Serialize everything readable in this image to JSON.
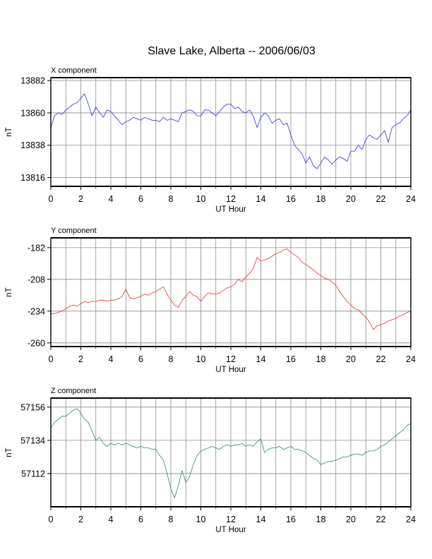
{
  "chart_data": {
    "title": "Slave Lake, Alberta -- 2006/06/03",
    "panels": [
      {
        "type": "line",
        "panel_title": "X component",
        "xlabel": "UT Hour",
        "ylabel": "nT",
        "xlim": [
          0,
          24
        ],
        "ylim": [
          13810,
          13884
        ],
        "xticks": [
          0,
          2,
          4,
          6,
          8,
          10,
          12,
          14,
          16,
          18,
          20,
          22,
          24
        ],
        "yticks": [
          13816,
          13838,
          13860,
          13882
        ],
        "grid": true,
        "color": "#3030e0",
        "x": [
          0.0,
          0.25,
          0.5,
          0.75,
          1.0,
          1.25,
          1.5,
          1.75,
          2.0,
          2.25,
          2.5,
          2.75,
          3.0,
          3.25,
          3.5,
          3.75,
          4.0,
          4.25,
          4.5,
          4.75,
          5.0,
          5.25,
          5.5,
          5.75,
          6.0,
          6.25,
          6.5,
          6.75,
          7.0,
          7.25,
          7.5,
          7.75,
          8.0,
          8.25,
          8.5,
          8.75,
          9.0,
          9.25,
          9.5,
          9.75,
          10.0,
          10.25,
          10.5,
          10.75,
          11.0,
          11.25,
          11.5,
          11.75,
          12.0,
          12.25,
          12.5,
          12.75,
          13.0,
          13.25,
          13.5,
          13.75,
          14.0,
          14.25,
          14.5,
          14.75,
          15.0,
          15.25,
          15.5,
          15.75,
          16.0,
          16.25,
          16.5,
          16.75,
          17.0,
          17.25,
          17.5,
          17.75,
          18.0,
          18.25,
          18.5,
          18.75,
          19.0,
          19.25,
          19.5,
          19.75,
          20.0,
          20.25,
          20.5,
          20.75,
          21.0,
          21.25,
          21.5,
          21.75,
          22.0,
          22.25,
          22.5,
          22.75,
          23.0,
          23.25,
          23.5,
          23.75,
          24.0
        ],
        "values": [
          13850,
          13858,
          13860,
          13859,
          13862,
          13864,
          13866,
          13867,
          13870,
          13873,
          13866,
          13858,
          13864,
          13860,
          13857,
          13862,
          13861,
          13858,
          13855,
          13852,
          13854,
          13855,
          13857,
          13856,
          13855,
          13857,
          13856,
          13855,
          13855,
          13854,
          13857,
          13855,
          13856,
          13855,
          13854,
          13860,
          13861,
          13862,
          13861,
          13858,
          13858,
          13862,
          13862,
          13860,
          13858,
          13861,
          13864,
          13866,
          13866,
          13863,
          13864,
          13861,
          13860,
          13862,
          13858,
          13850,
          13857,
          13860,
          13858,
          13853,
          13855,
          13856,
          13852,
          13853,
          13845,
          13838,
          13835,
          13832,
          13826,
          13830,
          13824,
          13822,
          13826,
          13830,
          13828,
          13825,
          13828,
          13830,
          13829,
          13827,
          13834,
          13834,
          13838,
          13835,
          13842,
          13845,
          13843,
          13842,
          13845,
          13848,
          13840,
          13850,
          13852,
          13853,
          13856,
          13858,
          13862
        ]
      },
      {
        "type": "line",
        "panel_title": "Y component",
        "xlabel": "UT Hour",
        "ylabel": "nT",
        "xlim": [
          0,
          24
        ],
        "ylim": [
          -263,
          -174
        ],
        "xticks": [
          0,
          2,
          4,
          6,
          8,
          10,
          12,
          14,
          16,
          18,
          20,
          22,
          24
        ],
        "yticks": [
          -182,
          -208,
          -234,
          -260
        ],
        "grid": true,
        "color": "#e03030",
        "x": [
          0.0,
          0.25,
          0.5,
          0.75,
          1.0,
          1.25,
          1.5,
          1.75,
          2.0,
          2.25,
          2.5,
          2.75,
          3.0,
          3.25,
          3.5,
          3.75,
          4.0,
          4.25,
          4.5,
          4.75,
          5.0,
          5.25,
          5.5,
          5.75,
          6.0,
          6.25,
          6.5,
          6.75,
          7.0,
          7.25,
          7.5,
          7.75,
          8.0,
          8.25,
          8.5,
          8.75,
          9.0,
          9.25,
          9.5,
          9.75,
          10.0,
          10.25,
          10.5,
          10.75,
          11.0,
          11.25,
          11.5,
          11.75,
          12.0,
          12.25,
          12.5,
          12.75,
          13.0,
          13.25,
          13.5,
          13.75,
          14.0,
          14.25,
          14.5,
          14.75,
          15.0,
          15.25,
          15.5,
          15.75,
          16.0,
          16.25,
          16.5,
          16.75,
          17.0,
          17.25,
          17.5,
          17.75,
          18.0,
          18.25,
          18.5,
          18.75,
          19.0,
          19.25,
          19.5,
          19.75,
          20.0,
          20.25,
          20.5,
          20.75,
          21.0,
          21.25,
          21.5,
          21.75,
          22.0,
          22.25,
          22.5,
          22.75,
          23.0,
          23.25,
          23.5,
          23.75,
          24.0
        ],
        "values": [
          -236,
          -236,
          -235,
          -234,
          -232,
          -230,
          -229,
          -230,
          -228,
          -226,
          -227,
          -226,
          -226,
          -225,
          -225,
          -226,
          -225,
          -225,
          -224,
          -222,
          -216,
          -223,
          -224,
          -223,
          -222,
          -220,
          -221,
          -219,
          -218,
          -216,
          -214,
          -220,
          -225,
          -229,
          -231,
          -225,
          -222,
          -218,
          -221,
          -222,
          -226,
          -222,
          -219,
          -220,
          -220,
          -219,
          -217,
          -215,
          -214,
          -212,
          -208,
          -210,
          -206,
          -203,
          -199,
          -190,
          -193,
          -192,
          -191,
          -189,
          -187,
          -186,
          -184,
          -183,
          -186,
          -188,
          -190,
          -194,
          -196,
          -198,
          -200,
          -203,
          -205,
          -207,
          -208,
          -210,
          -213,
          -218,
          -222,
          -226,
          -229,
          -232,
          -233,
          -236,
          -239,
          -243,
          -249,
          -246,
          -245,
          -244,
          -242,
          -241,
          -240,
          -238,
          -237,
          -235,
          -234
        ]
      },
      {
        "type": "line",
        "panel_title": "Z component",
        "xlabel": "UT Hour",
        "ylabel": "nT",
        "xlim": [
          0,
          24
        ],
        "ylim": [
          57090,
          57162
        ],
        "xticks": [
          0,
          2,
          4,
          6,
          8,
          10,
          12,
          14,
          16,
          18,
          20,
          22,
          24
        ],
        "yticks": [
          57112,
          57134,
          57156
        ],
        "grid": true,
        "color": "#2f8a55",
        "x": [
          0.0,
          0.25,
          0.5,
          0.75,
          1.0,
          1.25,
          1.5,
          1.75,
          2.0,
          2.25,
          2.5,
          2.75,
          3.0,
          3.25,
          3.5,
          3.75,
          4.0,
          4.25,
          4.5,
          4.75,
          5.0,
          5.25,
          5.5,
          5.75,
          6.0,
          6.25,
          6.5,
          6.75,
          7.0,
          7.25,
          7.5,
          7.75,
          8.0,
          8.25,
          8.5,
          8.75,
          9.0,
          9.25,
          9.5,
          9.75,
          10.0,
          10.25,
          10.5,
          10.75,
          11.0,
          11.25,
          11.5,
          11.75,
          12.0,
          12.25,
          12.5,
          12.75,
          13.0,
          13.25,
          13.5,
          13.75,
          14.0,
          14.25,
          14.5,
          14.75,
          15.0,
          15.25,
          15.5,
          15.75,
          16.0,
          16.25,
          16.5,
          16.75,
          17.0,
          17.25,
          17.5,
          17.75,
          18.0,
          18.25,
          18.5,
          18.75,
          19.0,
          19.25,
          19.5,
          19.75,
          20.0,
          20.25,
          20.5,
          20.75,
          21.0,
          21.25,
          21.5,
          21.75,
          22.0,
          22.25,
          22.5,
          22.75,
          23.0,
          23.25,
          23.5,
          23.75,
          24.0
        ],
        "values": [
          57142,
          57146,
          57148,
          57150,
          57150,
          57152,
          57154,
          57155,
          57152,
          57148,
          57146,
          57140,
          57134,
          57136,
          57132,
          57130,
          57132,
          57131,
          57132,
          57131,
          57132,
          57131,
          57130,
          57129,
          57130,
          57129,
          57129,
          57128,
          57128,
          57124,
          57121,
          57112,
          57102,
          57096,
          57104,
          57114,
          57106,
          57110,
          57118,
          57124,
          57127,
          57128,
          57129,
          57130,
          57129,
          57128,
          57130,
          57131,
          57130,
          57131,
          57131,
          57132,
          57130,
          57131,
          57130,
          57133,
          57135,
          57126,
          57128,
          57129,
          57129,
          57130,
          57128,
          57129,
          57130,
          57128,
          57128,
          57127,
          57126,
          57124,
          57122,
          57121,
          57118,
          57119,
          57120,
          57120,
          57121,
          57122,
          57123,
          57123,
          57124,
          57125,
          57125,
          57124,
          57126,
          57127,
          57127,
          57128,
          57130,
          57131,
          57133,
          57135,
          57137,
          57139,
          57141,
          57144,
          57145
        ]
      }
    ]
  }
}
